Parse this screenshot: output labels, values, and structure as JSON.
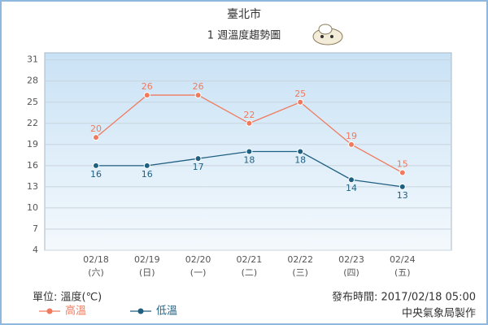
{
  "chart_data": {
    "type": "line",
    "title": "臺北市",
    "subtitle": "1 週溫度趨勢圖",
    "categories": [
      "02/18",
      "02/19",
      "02/20",
      "02/21",
      "02/22",
      "02/23",
      "02/24"
    ],
    "category_sublabels": [
      "(六)",
      "(日)",
      "(一)",
      "(二)",
      "(三)",
      "(四)",
      "(五)"
    ],
    "series": [
      {
        "name": "高溫",
        "color": "#f07a5e",
        "values": [
          20,
          26,
          26,
          22,
          25,
          19,
          15
        ]
      },
      {
        "name": "低溫",
        "color": "#1f5f80",
        "values": [
          16,
          16,
          17,
          18,
          18,
          14,
          13
        ]
      }
    ],
    "ylim": [
      4,
      32
    ],
    "yticks": [
      4,
      7,
      10,
      13,
      16,
      19,
      22,
      25,
      28,
      31
    ],
    "grid": true,
    "unit_label": "單位: 溫度(℃)",
    "issue_time": "發布時間: 2017/02/18 05:00",
    "credit": "中央氣象局製作"
  }
}
